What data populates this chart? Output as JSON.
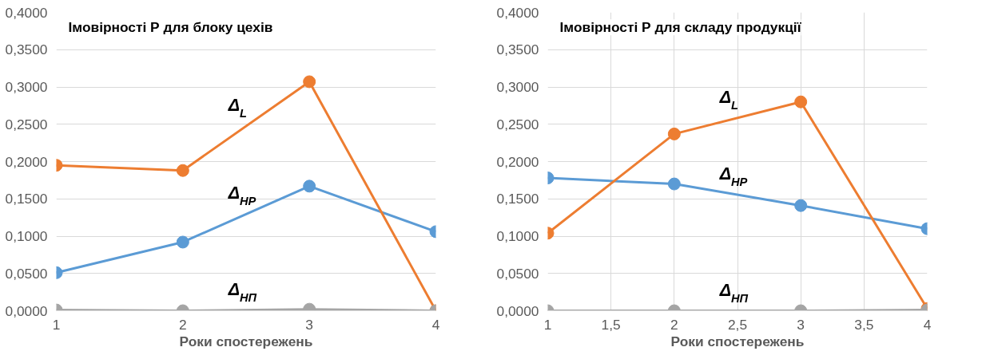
{
  "chart_data": [
    {
      "type": "line",
      "title": "Імовірності Р для блоку цехів",
      "xlabel": "Роки спостережень",
      "x": [
        1,
        2,
        3,
        4
      ],
      "xlim": [
        1,
        4
      ],
      "xticks": [
        1,
        2,
        3,
        4
      ],
      "ylim": [
        0,
        0.4
      ],
      "yticks": [
        {
          "value": 0,
          "label": "0,0000"
        },
        {
          "value": 0.05,
          "label": "0,0500"
        },
        {
          "value": 0.1,
          "label": "0,1000"
        },
        {
          "value": 0.15,
          "label": "0,1500"
        },
        {
          "value": 0.2,
          "label": "0,2000"
        },
        {
          "value": 0.25,
          "label": "0,2500"
        },
        {
          "value": 0.3,
          "label": "0,3000"
        },
        {
          "value": 0.35,
          "label": "0,3500"
        },
        {
          "value": 0.4,
          "label": "0,4000"
        }
      ],
      "grid": "y",
      "legend": false,
      "marker": "circle",
      "line_style": "solid",
      "series": [
        {
          "name": "Δ$_{HP}$",
          "color": "#5b9bd5",
          "values": [
            0.051,
            0.092,
            0.167,
            0.106
          ]
        },
        {
          "name": "Δ$_{L}$",
          "color": "#ed7d31",
          "values": [
            0.195,
            0.188,
            0.307,
            0.0
          ]
        },
        {
          "name": "Δ$_{НП}$",
          "color": "#a5a5a5",
          "values": [
            0.001,
            0.0,
            0.002,
            0.0
          ]
        }
      ]
    },
    {
      "type": "line",
      "title": "Імовірності Р для складу продукції",
      "xlabel": "Роки спостережень",
      "x": [
        1,
        2,
        3,
        4
      ],
      "xlim": [
        1,
        4
      ],
      "xticks": [
        1,
        {
          "value": 1.5,
          "label": "1,5"
        },
        2,
        {
          "value": 2.5,
          "label": "2,5"
        },
        3,
        {
          "value": 3.5,
          "label": "3,5"
        },
        4
      ],
      "ylim": [
        0,
        0.4
      ],
      "yticks": [
        {
          "value": 0,
          "label": "0,0000"
        },
        {
          "value": 0.05,
          "label": "0,0500"
        },
        {
          "value": 0.1,
          "label": "0,1000"
        },
        {
          "value": 0.15,
          "label": "0,1500"
        },
        {
          "value": 0.2,
          "label": "0,2000"
        },
        {
          "value": 0.25,
          "label": "0,2500"
        },
        {
          "value": 0.3,
          "label": "0,3000"
        },
        {
          "value": 0.35,
          "label": "0,3500"
        },
        {
          "value": 0.4,
          "label": "0,4000"
        }
      ],
      "grid": true,
      "legend": false,
      "marker": "circle",
      "line_style": "solid",
      "series": [
        {
          "name": "Δ$_{HP}$",
          "color": "#5b9bd5",
          "values": [
            0.178,
            0.17,
            0.141,
            0.11
          ]
        },
        {
          "name": "Δ$_{L}$",
          "color": "#ed7d31",
          "values": [
            0.104,
            0.237,
            0.28,
            0.003
          ]
        },
        {
          "name": "Δ$_{НП}$",
          "color": "#a5a5a5",
          "values": [
            0.0,
            0.0,
            0.0,
            0.001
          ]
        }
      ]
    }
  ]
}
